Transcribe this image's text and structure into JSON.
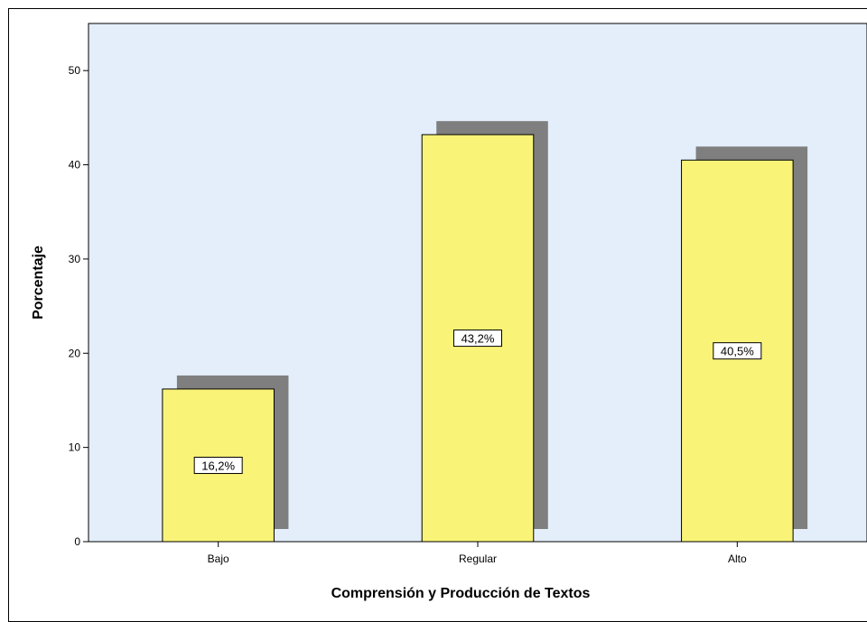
{
  "chart_data": {
    "type": "bar",
    "categories": [
      "Bajo",
      "Regular",
      "Alto"
    ],
    "values": [
      16.2,
      43.2,
      40.5
    ],
    "data_labels": [
      "16,2%",
      "43,2%",
      "40,5%"
    ],
    "xlabel": "Comprensión y Producción de Textos",
    "ylabel": "Porcentaje",
    "ylim": [
      0,
      55
    ],
    "yticks": [
      0,
      10,
      20,
      30,
      40,
      50
    ],
    "colors": {
      "bar": "#f9f478",
      "shadow": "#7f7f7f",
      "plot_background": "#e3eefa"
    }
  }
}
